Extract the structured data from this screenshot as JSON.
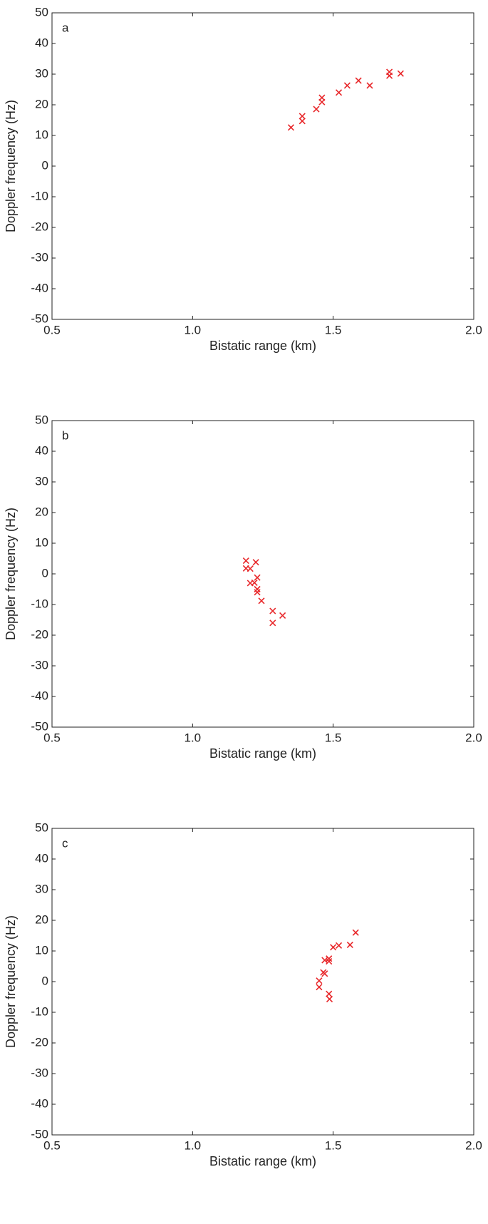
{
  "chart_data": [
    {
      "type": "scatter",
      "title": "a",
      "x_label": "Bistatic range (km)",
      "y_label": "Doppler frequency (Hz)",
      "color": "#e8272a",
      "marker": "x",
      "xlim": [
        0.5,
        2.0
      ],
      "ylim": [
        -50,
        50
      ],
      "xticks": [
        {
          "value": 0.5,
          "label": "0.5"
        },
        {
          "value": 1.0,
          "label": "1.0"
        },
        {
          "value": 1.5,
          "label": "1.5"
        },
        {
          "value": 2.0,
          "label": "2.0"
        }
      ],
      "yticks": [
        -50,
        -40,
        -30,
        -20,
        -10,
        0,
        10,
        20,
        30,
        40,
        50
      ],
      "x": [
        1.35,
        1.39,
        1.39,
        1.44,
        1.46,
        1.46,
        1.52,
        1.55,
        1.59,
        1.63,
        1.7,
        1.7,
        1.74
      ],
      "values": [
        12.6,
        16.3,
        14.7,
        18.6,
        22.3,
        20.9,
        24.0,
        26.3,
        27.9,
        26.3,
        30.7,
        29.5,
        30.2
      ]
    },
    {
      "type": "scatter",
      "title": "b",
      "x_label": "Bistatic range (km)",
      "y_label": "Doppler frequency (Hz)",
      "color": "#e8272a",
      "marker": "x",
      "xlim": [
        0.5,
        2.0
      ],
      "ylim": [
        -50,
        50
      ],
      "xticks": [
        {
          "value": 0.5,
          "label": "0.5"
        },
        {
          "value": 1.0,
          "label": "1.0"
        },
        {
          "value": 1.5,
          "label": "1.5"
        },
        {
          "value": 2.0,
          "label": "2.0"
        }
      ],
      "yticks": [
        -50,
        -40,
        -30,
        -20,
        -10,
        0,
        10,
        20,
        30,
        40,
        50
      ],
      "x": [
        1.19,
        1.225,
        1.19,
        1.205,
        1.23,
        1.205,
        1.22,
        1.23,
        1.23,
        1.245,
        1.285,
        1.32,
        1.285
      ],
      "values": [
        4.3,
        3.8,
        1.8,
        1.7,
        -1.2,
        -3,
        -2.9,
        -5,
        -6,
        -8.8,
        -12.1,
        -13.6,
        -16
      ]
    },
    {
      "type": "scatter",
      "title": "c",
      "x_label": "Bistatic range (km)",
      "y_label": "Doppler frequency (Hz)",
      "color": "#e8272a",
      "marker": "x",
      "xlim": [
        0.5,
        2.0
      ],
      "ylim": [
        -50,
        50
      ],
      "xticks": [
        {
          "value": 0.5,
          "label": "0.5"
        },
        {
          "value": 1.0,
          "label": "1.0"
        },
        {
          "value": 1.5,
          "label": "1.5"
        },
        {
          "value": 2.0,
          "label": "2.0"
        }
      ],
      "yticks": [
        -50,
        -40,
        -30,
        -20,
        -10,
        0,
        10,
        20,
        30,
        40,
        50
      ],
      "x": [
        1.58,
        1.56,
        1.52,
        1.5,
        1.485,
        1.47,
        1.485,
        1.465,
        1.47,
        1.45,
        1.45,
        1.485,
        1.487
      ],
      "values": [
        16,
        12,
        11.8,
        11.2,
        7.5,
        7,
        6.6,
        3,
        2.6,
        0.3,
        -1.8,
        -4,
        -5.7
      ]
    }
  ]
}
